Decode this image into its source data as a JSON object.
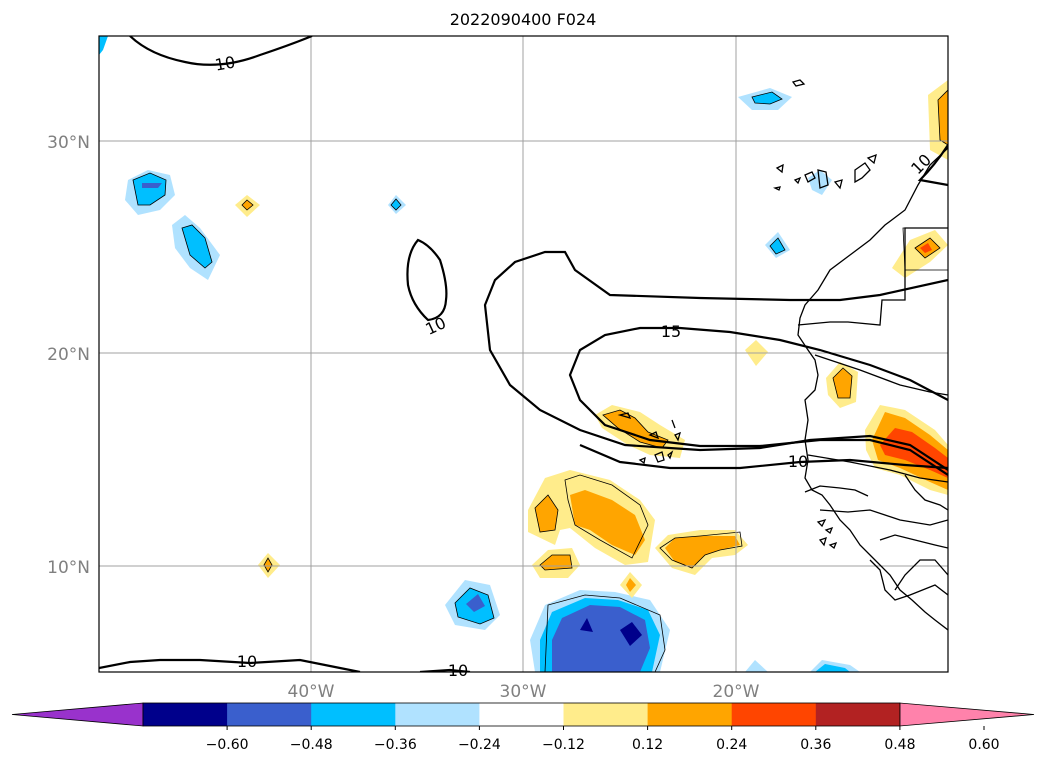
{
  "title": "2022090400 F024",
  "axes": {
    "lat_labels": [
      "30°N",
      "20°N",
      "10°N"
    ],
    "lon_labels": [
      "40°W",
      "30°W",
      "20°W"
    ]
  },
  "contour_labels": [
    "10",
    "10",
    "15",
    "10",
    "10",
    "10",
    "10"
  ],
  "colorbar": {
    "colors": [
      "#9932cc",
      "#00008b",
      "#3a5fcd",
      "#00bfff",
      "#b0e2ff",
      "#ffffff",
      "#ffec8b",
      "#ffa500",
      "#ff4500",
      "#b22222",
      "#ff82ab"
    ],
    "tick_labels": [
      "−0.60",
      "−0.48",
      "−0.36",
      "−0.24",
      "−0.12",
      "0.12",
      "0.24",
      "0.36",
      "0.48",
      "0.60"
    ],
    "extend": "both"
  }
}
